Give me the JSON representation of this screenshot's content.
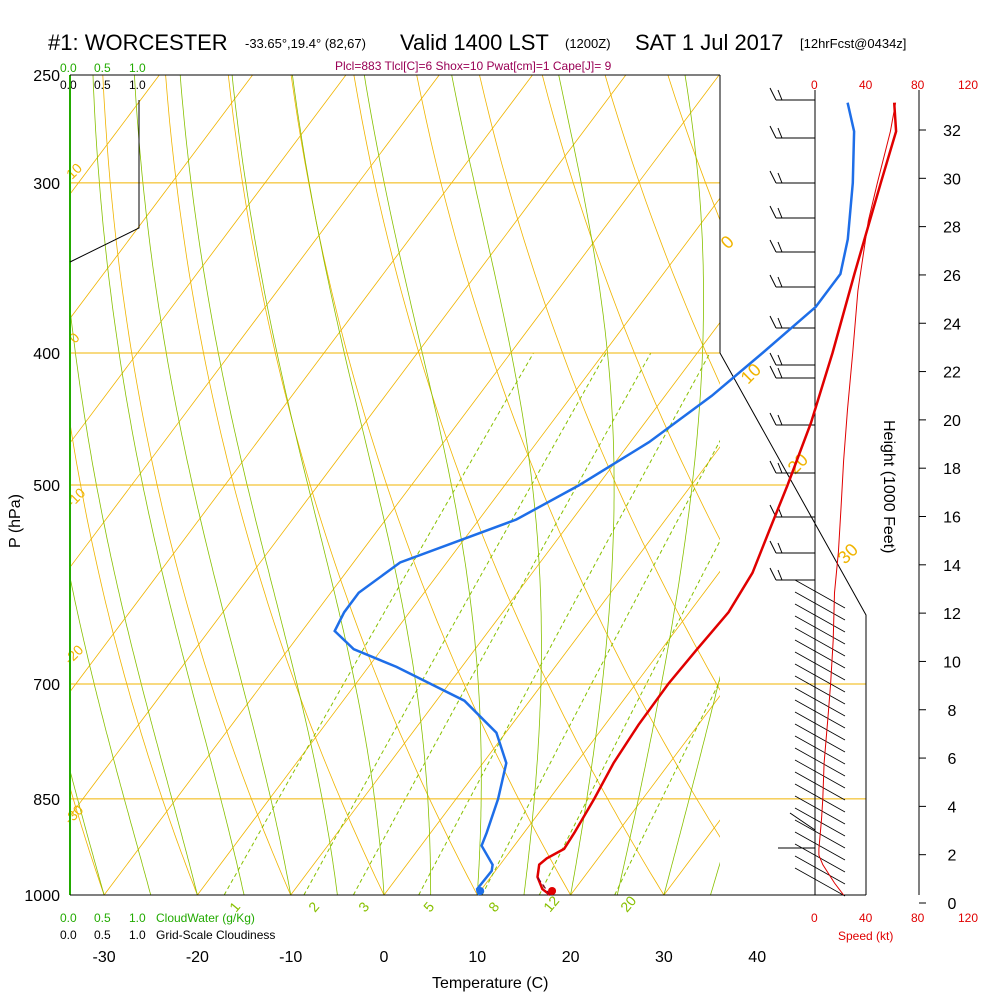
{
  "header": {
    "station": "#1: WORCESTER",
    "coords": "-33.65°,19.4° (82,67)",
    "valid": "Valid 1400 LST",
    "zulu": "(1200Z)",
    "date": "SAT 1 Jul 2017",
    "forecast": "[12hrFcst@0434z]"
  },
  "params_line": "Plcl=883 Tlcl[C]=6 Shox=10 Pwat[cm]=1 Cape[J]= 9",
  "colors": {
    "isobar": "#f0b400",
    "dry_adiabat": "#f0b400",
    "moist_adiabat": "#88c000",
    "mixing_ratio": "#88c000",
    "temperature": "#e00000",
    "dewpoint": "#1e6ee8",
    "cloud_green": "#22aa00",
    "speed_red": "#e00000"
  },
  "bottom_legend": {
    "cloudwater_ticks": [
      "0.0",
      "0.5",
      "1.0"
    ],
    "cloudwater_label": "CloudWater (g/Kg)",
    "cloudiness_ticks": [
      "0.0",
      "0.5",
      "1.0"
    ],
    "cloudiness_label": "Grid-Scale Cloudiness"
  },
  "top_legend": {
    "green_ticks": [
      "0.0",
      "0.5",
      "1.0"
    ],
    "black_ticks": [
      "0.0",
      "0.5",
      "1.0"
    ]
  },
  "speed_axis": {
    "label": "Speed (kt)",
    "ticks": [
      "0",
      "40",
      "80",
      "120"
    ]
  },
  "height_axis": {
    "label": "Height (1000 Feet)",
    "ticks": [
      "0",
      "2",
      "4",
      "6",
      "8",
      "10",
      "12",
      "14",
      "16",
      "18",
      "20",
      "22",
      "24",
      "26",
      "28",
      "30",
      "32"
    ]
  },
  "chart_data": {
    "type": "line",
    "title": "#1: WORCESTER Valid 1400 LST (1200Z) SAT 1 Jul 2017",
    "xlabel": "Temperature (C)",
    "ylabel": "P (hPa)",
    "xlim": [
      -34,
      45
    ],
    "ylim": [
      1000,
      250
    ],
    "y_scale": "log",
    "x_ticks": [
      -30,
      -20,
      -10,
      0,
      10,
      20,
      30,
      40
    ],
    "x_tick_labels": [
      "-30",
      "-20",
      "-10",
      "0",
      "10",
      "20",
      "30",
      "40"
    ],
    "pressure_ticks": [
      250,
      300,
      400,
      500,
      700,
      850,
      1000
    ],
    "pressure_tick_labels": [
      "250",
      "300",
      "400",
      "500",
      "700",
      "850",
      "1000"
    ],
    "dry_adiabat_labels": [
      {
        "text": "10",
        "theta": 10
      },
      {
        "text": "0",
        "theta": 0
      },
      {
        "text": "-10",
        "theta": -10
      },
      {
        "text": "-20",
        "theta": -20
      },
      {
        "text": "-30",
        "theta": -30
      },
      {
        "text": "0",
        "theta": 0
      },
      {
        "text": "10",
        "theta": 10
      },
      {
        "text": "20",
        "theta": 20
      },
      {
        "text": "30",
        "theta": 30
      }
    ],
    "mixing_ratio_labels": [
      "1",
      "2",
      "3",
      "5",
      "8",
      "12",
      "20"
    ],
    "series": [
      {
        "name": "Temperature",
        "points": [
          [
            17.8,
            1000
          ],
          [
            16.5,
            990
          ],
          [
            15.0,
            970
          ],
          [
            14.2,
            950
          ],
          [
            14.5,
            940
          ],
          [
            15.6,
            925
          ],
          [
            15.4,
            900
          ],
          [
            14.8,
            850
          ],
          [
            14.0,
            800
          ],
          [
            13.6,
            750
          ],
          [
            13.5,
            700
          ],
          [
            13.8,
            660
          ],
          [
            14.2,
            620
          ],
          [
            13.6,
            580
          ],
          [
            12.0,
            540
          ],
          [
            10.3,
            500
          ],
          [
            7.8,
            450
          ],
          [
            4.5,
            400
          ],
          [
            0.5,
            350
          ],
          [
            -4.0,
            300
          ],
          [
            -6.5,
            275
          ],
          [
            -9.0,
            262
          ]
        ]
      },
      {
        "name": "Dewpoint",
        "points": [
          [
            10.2,
            1000
          ],
          [
            9.5,
            990
          ],
          [
            9.6,
            960
          ],
          [
            9.2,
            950
          ],
          [
            6.5,
            920
          ],
          [
            6.0,
            900
          ],
          [
            4.5,
            850
          ],
          [
            2.5,
            800
          ],
          [
            -1.0,
            760
          ],
          [
            -7.0,
            720
          ],
          [
            -17.0,
            680
          ],
          [
            -23.0,
            660
          ],
          [
            -26.5,
            640
          ],
          [
            -27.0,
            620
          ],
          [
            -27.0,
            600
          ],
          [
            -25.0,
            570
          ],
          [
            -16.0,
            530
          ],
          [
            -12.0,
            500
          ],
          [
            -8.0,
            465
          ],
          [
            -5.0,
            430
          ],
          [
            -3.0,
            400
          ],
          [
            -1.0,
            370
          ],
          [
            -1.0,
            350
          ],
          [
            -3.0,
            330
          ],
          [
            -7.0,
            300
          ],
          [
            -11.0,
            275
          ],
          [
            -14.0,
            262
          ]
        ]
      },
      {
        "name": "Parcel",
        "points": [
          [
            17.8,
            1000
          ],
          [
            14.8,
            968
          ]
        ]
      },
      {
        "name": "Wind speed",
        "points": [
          [
            22,
            1000
          ],
          [
            15,
            980
          ],
          [
            6,
            950
          ],
          [
            3,
            935
          ],
          [
            3,
            925
          ],
          [
            5,
            880
          ],
          [
            6,
            850
          ],
          [
            7,
            800
          ],
          [
            10,
            740
          ],
          [
            12,
            700
          ],
          [
            14,
            650
          ],
          [
            15,
            600
          ],
          [
            18,
            560
          ],
          [
            20,
            520
          ],
          [
            22,
            480
          ],
          [
            25,
            440
          ],
          [
            29,
            400
          ],
          [
            33,
            360
          ],
          [
            41,
            320
          ],
          [
            48,
            300
          ],
          [
            58,
            275
          ],
          [
            62,
            262
          ]
        ]
      }
    ],
    "surface_markers": [
      {
        "name": "Surface temperature",
        "value": 17.8
      },
      {
        "name": "Surface dewpoint",
        "value": 10.2
      }
    ],
    "grid": true
  }
}
